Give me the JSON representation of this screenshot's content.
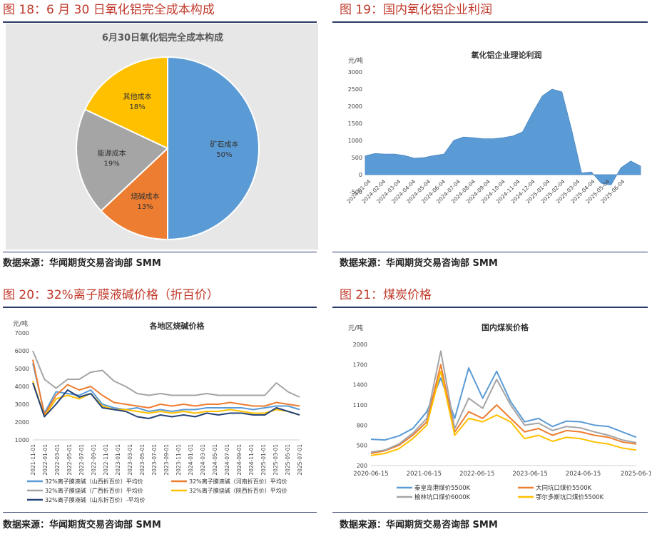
{
  "panels": {
    "p18": {
      "heading": "图 18：6 月 30 日氧化铝完全成本构成",
      "source": "数据来源：华闻期货交易咨询部 SMM"
    },
    "p19": {
      "heading": "图 19：国内氧化铝企业利润",
      "source": "数据来源：华闻期货交易咨询部 SMM"
    },
    "p20": {
      "heading": "图 20：32%离子膜液碱价格（折百价）",
      "source": "数据来源：华闻期货交易咨询部 SMM"
    },
    "p21": {
      "heading": "图 21：煤炭价格",
      "source": "数据来源：华闻期货交易咨询部 SMM"
    }
  },
  "chart_data": [
    {
      "type": "pie",
      "title": "6月30日氧化铝完全成本构成",
      "categories": [
        "矿石成本",
        "烧碱成本",
        "能源成本",
        "其他成本"
      ],
      "values": [
        50,
        13,
        19,
        18
      ],
      "value_labels": [
        "50%",
        "13%",
        "19%",
        "18%"
      ],
      "colors": [
        "#5b9bd5",
        "#ed7d31",
        "#a5a5a5",
        "#ffc000"
      ]
    },
    {
      "type": "area",
      "title": "氧化铝企业理论利润",
      "ylabel": "元/吨",
      "ylim": [
        -500,
        3000
      ],
      "yticks": [
        "-500",
        "0",
        "500",
        "1000",
        "1500",
        "2000",
        "2500",
        "3000"
      ],
      "xticks": [
        "2024-01-04",
        "2024-02-04",
        "2024-03-04",
        "2024-04-04",
        "2024-05-04",
        "2024-06-04",
        "2024-07-04",
        "2024-08-04",
        "2024-09-04",
        "2024-10-04",
        "2024-11-04",
        "2024-12-04",
        "2025-01-04",
        "2025-02-04",
        "2025-03-04",
        "2025-04-04",
        "2025-05-04",
        "2025-06-04"
      ],
      "values": [
        550,
        620,
        600,
        600,
        560,
        480,
        500,
        560,
        600,
        1000,
        1100,
        1080,
        1050,
        1050,
        1080,
        1130,
        1250,
        1800,
        2300,
        2500,
        2420,
        1300,
        50,
        80,
        -250,
        -300,
        200,
        400,
        250
      ],
      "color": "#5b9bd5"
    },
    {
      "type": "line",
      "title": "各地区烧碱价格",
      "ylabel": "元/吨",
      "ylim": [
        1000,
        7000
      ],
      "yticks": [
        "1000",
        "2000",
        "3000",
        "4000",
        "5000",
        "6000",
        "7000"
      ],
      "xticks": [
        "2021-11-01",
        "2022-01-01",
        "2022-03-01",
        "2022-05-01",
        "2022-07-01",
        "2022-09-01",
        "2022-11-01",
        "2023-01-01",
        "2023-03-01",
        "2023-05-01",
        "2023-07-01",
        "2023-09-01",
        "2023-11-01",
        "2024-01-01",
        "2024-03-01",
        "2024-05-01",
        "2024-07-01",
        "2024-09-01",
        "2024-11-01",
        "2025-01-01",
        "2025-03-01",
        "2025-05-01",
        "2025-07-01"
      ],
      "series": [
        {
          "name": "32%离子膜液碱（山西折百价）平均价",
          "color": "#5b9bd5",
          "values": [
            5300,
            2500,
            3700,
            3600,
            3500,
            3800,
            3000,
            2800,
            2700,
            2800,
            2600,
            2700,
            2600,
            2700,
            2700,
            2800,
            2800,
            2800,
            2800,
            2700,
            2800,
            2900,
            2900,
            2700
          ]
        },
        {
          "name": "32%离子膜液碱（河南折百价）平均价",
          "color": "#ed7d31",
          "values": [
            5500,
            2400,
            3500,
            4100,
            3800,
            4000,
            3500,
            3100,
            3000,
            2900,
            2800,
            3000,
            2900,
            3000,
            2900,
            3000,
            3000,
            3100,
            3000,
            2900,
            2900,
            3100,
            3000,
            2900
          ]
        },
        {
          "name": "32%离子膜烧碱（广西折百价）平均价",
          "color": "#a5a5a5",
          "values": [
            6000,
            4400,
            3900,
            4400,
            4400,
            4800,
            4900,
            4300,
            4000,
            3600,
            3500,
            3600,
            3500,
            3500,
            3500,
            3600,
            3500,
            3500,
            3500,
            3500,
            3500,
            4200,
            3700,
            3400
          ]
        },
        {
          "name": "32%离子膜烧碱（陕西折百价）平均价",
          "color": "#ffc000",
          "values": [
            4300,
            2300,
            3300,
            3500,
            3300,
            3600,
            2900,
            2700,
            2700,
            2600,
            2500,
            2600,
            2500,
            2600,
            2500,
            2600,
            2600,
            2700,
            2600,
            2500,
            2500,
            2700,
            2600,
            2400
          ]
        },
        {
          "name": "32%离子膜液碱（山东折百价）-平均价",
          "color": "#264478",
          "values": [
            4200,
            2300,
            3000,
            3800,
            3400,
            3600,
            2800,
            2700,
            2600,
            2300,
            2200,
            2400,
            2300,
            2400,
            2300,
            2500,
            2400,
            2500,
            2500,
            2400,
            2400,
            2800,
            2600,
            2400
          ]
        }
      ]
    },
    {
      "type": "line",
      "title": "国内煤炭价格",
      "ylabel": "元/吨",
      "ylim": [
        200,
        2000
      ],
      "yticks": [
        "200",
        "500",
        "800",
        "1100",
        "1400",
        "1700",
        "2000"
      ],
      "xticks": [
        "2020-06-15",
        "2021-06-15",
        "2022-06-15",
        "2023-06-15",
        "2024-06-15",
        "2025-06-1"
      ],
      "series": [
        {
          "name": "秦皇岛港煤价5500K",
          "color": "#5b9bd5",
          "values": [
            590,
            580,
            640,
            750,
            1000,
            1500,
            900,
            1650,
            1200,
            1600,
            1150,
            850,
            900,
            780,
            860,
            850,
            800,
            780,
            700,
            620
          ]
        },
        {
          "name": "大同坑口煤价5500K",
          "color": "#ed7d31",
          "values": [
            380,
            420,
            500,
            650,
            850,
            1700,
            700,
            1000,
            900,
            1100,
            900,
            700,
            750,
            650,
            720,
            700,
            650,
            620,
            550,
            520
          ]
        },
        {
          "name": "榆林坑口煤价6000K",
          "color": "#a5a5a5",
          "values": [
            400,
            430,
            520,
            680,
            900,
            1900,
            750,
            1200,
            1050,
            1480,
            1100,
            800,
            830,
            720,
            780,
            760,
            700,
            650,
            580,
            540
          ]
        },
        {
          "name": "鄂尔多斯坑口煤价5500K",
          "color": "#ffc000",
          "values": [
            350,
            380,
            450,
            600,
            800,
            1600,
            650,
            900,
            850,
            950,
            850,
            600,
            650,
            560,
            620,
            600,
            550,
            520,
            460,
            430
          ]
        }
      ]
    }
  ]
}
